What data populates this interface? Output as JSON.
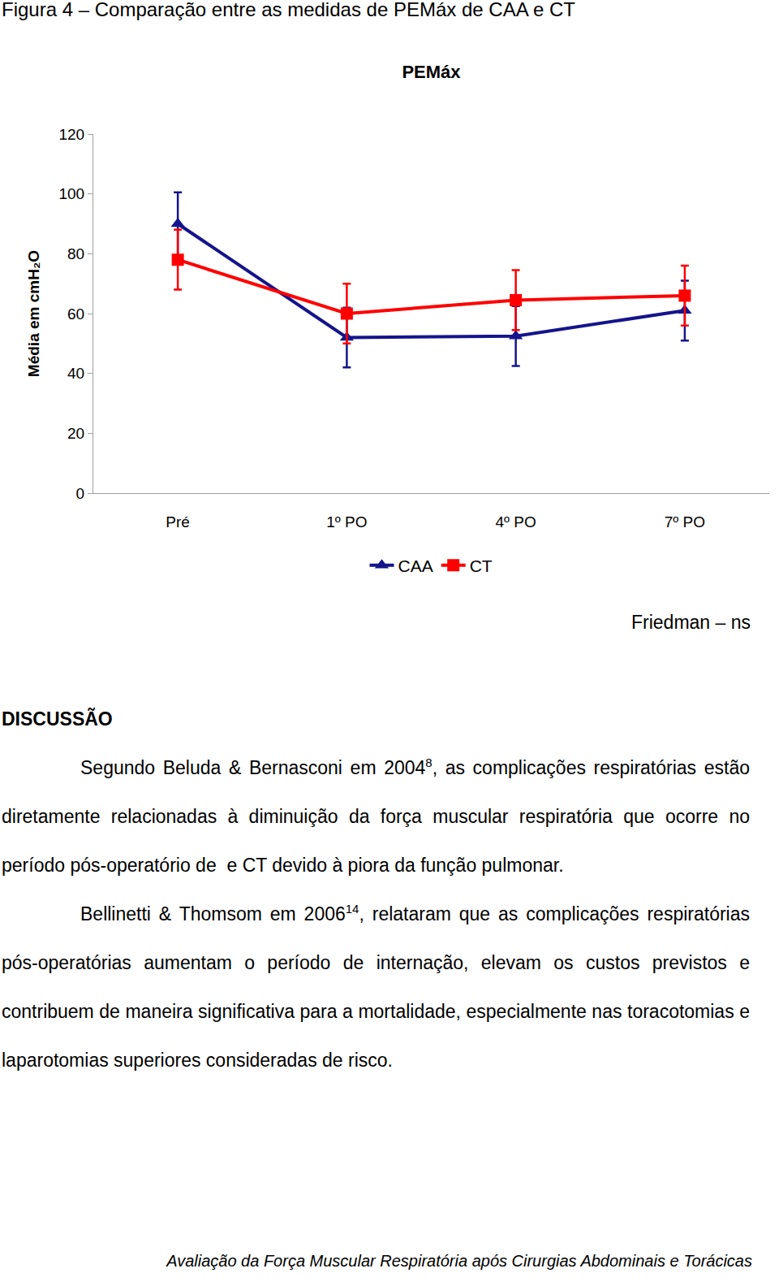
{
  "chart_data": {
    "type": "line",
    "title": "PEMáx",
    "ylabel": "Média em cmH₂O",
    "categories": [
      "Pré",
      "1º PO",
      "4º PO",
      "7º PO"
    ],
    "series": [
      {
        "name": "CAA",
        "color": "#14148c",
        "marker": "triangle-up",
        "values": [
          90,
          52,
          52.5,
          61
        ],
        "errors": [
          10.5,
          10,
          10,
          10
        ]
      },
      {
        "name": "CT",
        "color": "#ff0000",
        "marker": "square",
        "values": [
          78,
          60,
          64.5,
          66
        ],
        "errors": [
          10,
          10,
          10,
          10
        ]
      }
    ],
    "ylim": [
      0,
      120
    ],
    "yticks": [
      0,
      20,
      40,
      60,
      80,
      100,
      120
    ],
    "grid": false,
    "legend": "bottom"
  },
  "document": {
    "caption": "Figura 4 – Comparação entre as medidas de PEMáx de CAA e CT",
    "note": "Friedman – ns",
    "heading": "DISCUSSÃO",
    "paragraphs": [
      {
        "before": "Segundo Beluda & Bernasconi em 2004",
        "sup": "8",
        "after": ", as complicações respiratórias estão diretamente relacionadas à diminuição da força muscular respiratória que ocorre no período pós-operatório de  e CT devido à piora da função pulmonar."
      },
      {
        "before": "Bellinetti & Thomsom em 2006",
        "sup": "14",
        "after": ", relataram que as complicações respiratórias pós-operatórias aumentam o período de internação, elevam os custos previstos e contribuem de maneira significativa para a mortalidade, especialmente nas toracotomias e laparotomias superiores consideradas de risco."
      }
    ],
    "footer": "Avaliação da Força Muscular Respiratória após Cirurgias Abdominais e Torácicas"
  }
}
